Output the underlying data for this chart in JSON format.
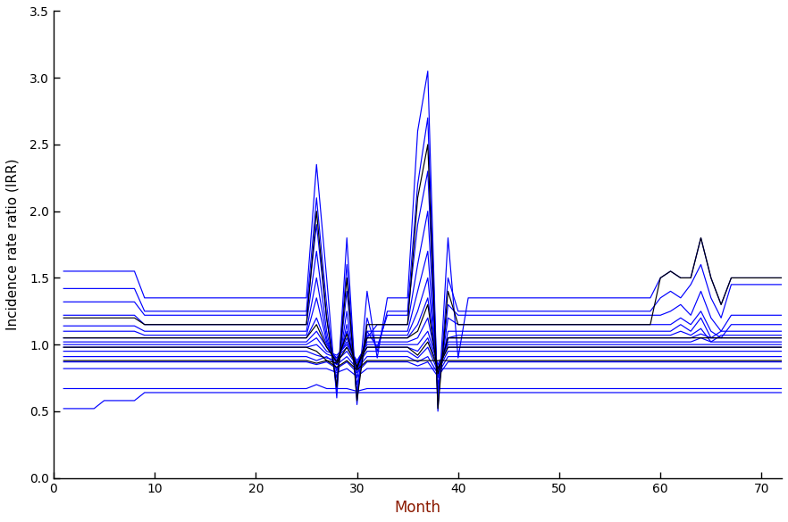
{
  "xlabel": "Month",
  "ylabel": "Incidence rate ratio (IRR)",
  "xlim": [
    0,
    72
  ],
  "ylim": [
    0.0,
    3.5
  ],
  "xticks": [
    0,
    10,
    20,
    30,
    40,
    50,
    60,
    70
  ],
  "yticks": [
    0.0,
    0.5,
    1.0,
    1.5,
    2.0,
    2.5,
    3.0,
    3.5
  ],
  "background_color": "#ffffff",
  "blue": "#0000ff",
  "black": "#000000",
  "xlabel_color": "#8B1A00",
  "ylabel_color": "#000000",
  "n_months": 72
}
